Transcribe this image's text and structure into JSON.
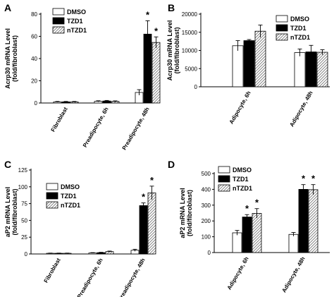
{
  "chart_data": [
    {
      "panel": "A",
      "type": "bar",
      "ylabel": "Acrp30 mRNA Level\n(fold/fibroblast)",
      "ylim": [
        0,
        80
      ],
      "yticks": [
        0,
        20,
        40,
        60,
        80
      ],
      "categories": [
        "Fibroblast",
        "Preadipocyte, 6h",
        "Preadipocyte, 48h"
      ],
      "legend_position": "top-left",
      "series": [
        {
          "name": "DMSO",
          "values": [
            1.0,
            1.5,
            9.5
          ],
          "errors": [
            0.4,
            0.5,
            2.5
          ],
          "stars": [
            false,
            false,
            false
          ]
        },
        {
          "name": "TZD1",
          "values": [
            1.0,
            1.8,
            62.0
          ],
          "errors": [
            0.4,
            0.5,
            12.0
          ],
          "stars": [
            false,
            false,
            true
          ]
        },
        {
          "name": "nTZD1",
          "values": [
            1.0,
            1.4,
            54.5
          ],
          "errors": [
            0.4,
            0.5,
            5.0
          ],
          "stars": [
            false,
            false,
            true
          ]
        }
      ]
    },
    {
      "panel": "B",
      "type": "bar",
      "ylabel": "Acrp30 mRNA Level\n(fold/fibroblast)",
      "ylim": [
        0,
        20000
      ],
      "yticks": [
        0,
        5000,
        10000,
        15000,
        20000
      ],
      "categories": [
        "Adipocyte, 6h",
        "Adipocyte, 48h"
      ],
      "legend_position": "top-right",
      "series": [
        {
          "name": "DMSO",
          "values": [
            11300,
            9400
          ],
          "errors": [
            1400,
            1000
          ],
          "stars": [
            false,
            false
          ]
        },
        {
          "name": "TZD1",
          "values": [
            12700,
            9600
          ],
          "errors": [
            300,
            1800
          ],
          "stars": [
            false,
            false
          ]
        },
        {
          "name": "nTZD1",
          "values": [
            15300,
            9500
          ],
          "errors": [
            1700,
            700
          ],
          "stars": [
            false,
            false
          ]
        }
      ]
    },
    {
      "panel": "C",
      "type": "bar",
      "ylabel": "aP2 mRNA Level\n(fold/fibroblast)",
      "ylim": [
        0,
        125
      ],
      "yticks": [
        0,
        25,
        50,
        75,
        100,
        125
      ],
      "categories": [
        "Fibroblast",
        "Preadipocyte, 6h",
        "Preadipocyte, 48h"
      ],
      "legend_position": "top-left",
      "series": [
        {
          "name": "DMSO",
          "values": [
            1.0,
            1.5,
            5.5
          ],
          "errors": [
            0.3,
            0.5,
            1.5
          ],
          "stars": [
            false,
            false,
            false
          ]
        },
        {
          "name": "TZD1",
          "values": [
            1.0,
            2.0,
            72.0
          ],
          "errors": [
            0.3,
            0.5,
            4.0
          ],
          "stars": [
            false,
            false,
            true
          ]
        },
        {
          "name": "nTZD1",
          "values": [
            1.0,
            3.5,
            91.0
          ],
          "errors": [
            0.3,
            0.8,
            10.0
          ],
          "stars": [
            false,
            false,
            true
          ]
        }
      ]
    },
    {
      "panel": "D",
      "type": "bar",
      "ylabel": "aP2 mRNA Level\n(fold/fibroblast)",
      "ylim": [
        0,
        500
      ],
      "yticks": [
        0,
        100,
        200,
        300,
        400,
        500
      ],
      "categories": [
        "Adipocyte, 6h",
        "Adipocyte, 48h"
      ],
      "legend_position": "top-left",
      "series": [
        {
          "name": "DMSO",
          "values": [
            125,
            115
          ],
          "errors": [
            15,
            12
          ],
          "stars": [
            false,
            false
          ]
        },
        {
          "name": "TZD1",
          "values": [
            225,
            400
          ],
          "errors": [
            15,
            30
          ],
          "stars": [
            true,
            true
          ]
        },
        {
          "name": "nTZD1",
          "values": [
            248,
            398
          ],
          "errors": [
            30,
            32
          ],
          "stars": [
            true,
            true
          ]
        }
      ]
    }
  ],
  "series_styles": {
    "DMSO": {
      "fill": "#ffffff",
      "pattern": "none"
    },
    "TZD1": {
      "fill": "#000000",
      "pattern": "none"
    },
    "nTZD1": {
      "fill": "#ffffff",
      "pattern": "diagonal-hatch"
    }
  },
  "colors": {
    "axis": "#000000",
    "bar_stroke": "#000000",
    "hatch": "#777777"
  },
  "significance_marker": "*"
}
